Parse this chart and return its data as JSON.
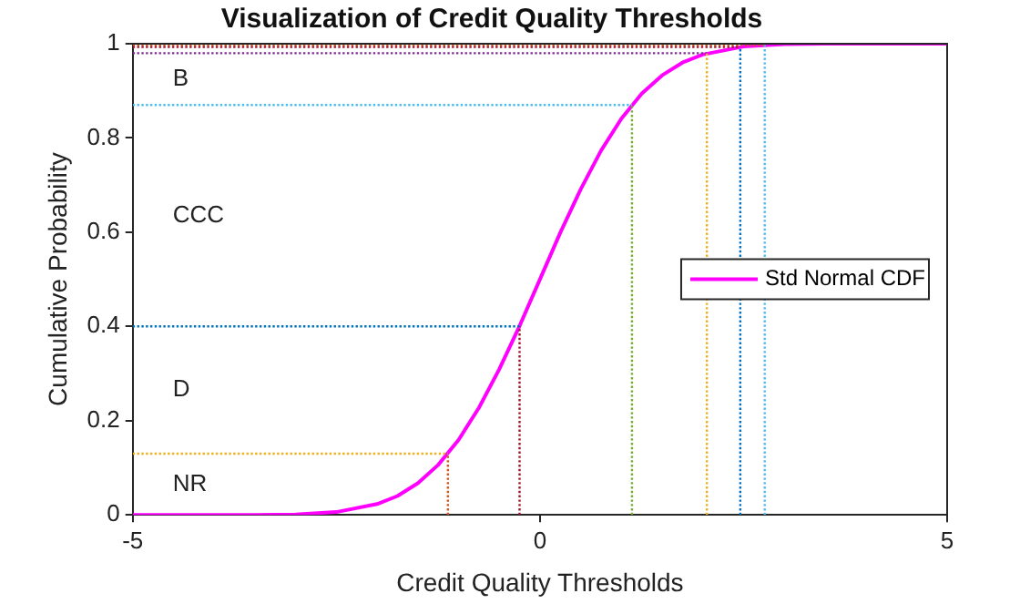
{
  "chart_data": {
    "type": "line",
    "title": "Visualization of Credit Quality Thresholds",
    "xlabel": "Credit Quality Thresholds",
    "ylabel": "Cumulative Probability",
    "xlim": [
      -5,
      5
    ],
    "xticks": [
      -5,
      0,
      5
    ],
    "ylim": [
      0,
      1
    ],
    "yticks": [
      0,
      0.2,
      0.4,
      0.6,
      0.8,
      1
    ],
    "grid": false,
    "legend": "right",
    "marker": "none",
    "series": [
      {
        "name": "Std Normal CDF",
        "color": "#ff00ff",
        "line_style": "solid",
        "x": [
          -5,
          -4,
          -3.5,
          -3,
          -2.5,
          -2,
          -1.75,
          -1.5,
          -1.25,
          -1,
          -0.75,
          -0.5,
          -0.25,
          0,
          0.25,
          0.5,
          0.75,
          1,
          1.25,
          1.5,
          1.75,
          2,
          2.5,
          3,
          3.5,
          4,
          5
        ],
        "values": [
          0,
          0,
          0,
          0.001,
          0.006,
          0.023,
          0.04,
          0.067,
          0.106,
          0.159,
          0.227,
          0.309,
          0.401,
          0.5,
          0.599,
          0.691,
          0.773,
          0.841,
          0.894,
          0.933,
          0.96,
          0.977,
          0.994,
          0.999,
          1,
          1,
          1
        ]
      },
      {
        "color": "#d95319",
        "line_style": "dotted",
        "x": [
          -1.13,
          -1.13
        ],
        "values": [
          0,
          0.13
        ]
      },
      {
        "color": "#a2142f",
        "line_style": "dotted",
        "x": [
          -0.25,
          -0.25
        ],
        "values": [
          0,
          0.4
        ]
      },
      {
        "color": "#77ac30",
        "line_style": "dotted",
        "x": [
          1.13,
          1.13
        ],
        "values": [
          0,
          0.87
        ]
      },
      {
        "color": "#edb120",
        "line_style": "dotted",
        "x": [
          2.05,
          2.05
        ],
        "values": [
          0,
          0.98
        ]
      },
      {
        "color": "#0072bd",
        "line_style": "dotted",
        "x": [
          2.46,
          2.46
        ],
        "values": [
          0,
          0.993
        ]
      },
      {
        "color": "#4dbeee",
        "line_style": "dotted",
        "x": [
          2.76,
          2.76
        ],
        "values": [
          0,
          0.997
        ]
      },
      {
        "color": "#edb120",
        "line_style": "dotted",
        "x": [
          -5,
          -1.13
        ],
        "values": [
          0.13,
          0.13
        ]
      },
      {
        "color": "#0072bd",
        "line_style": "dotted",
        "x": [
          -5,
          -0.25
        ],
        "values": [
          0.4,
          0.4
        ]
      },
      {
        "color": "#4dbeee",
        "line_style": "dotted",
        "x": [
          -5,
          1.13
        ],
        "values": [
          0.87,
          0.87
        ]
      },
      {
        "color": "#7e2f8e",
        "line_style": "dotted",
        "x": [
          -5,
          2.05
        ],
        "values": [
          0.98,
          0.98
        ]
      },
      {
        "color": "#a2142f",
        "line_style": "dotted",
        "x": [
          -5,
          2.46
        ],
        "values": [
          0.993,
          0.993
        ]
      },
      {
        "color": "#d95319",
        "line_style": "dotted",
        "x": [
          -5,
          2.76
        ],
        "values": [
          0.997,
          0.997
        ]
      }
    ],
    "annotations": [
      "B",
      "CCC",
      "D",
      "NR"
    ]
  }
}
